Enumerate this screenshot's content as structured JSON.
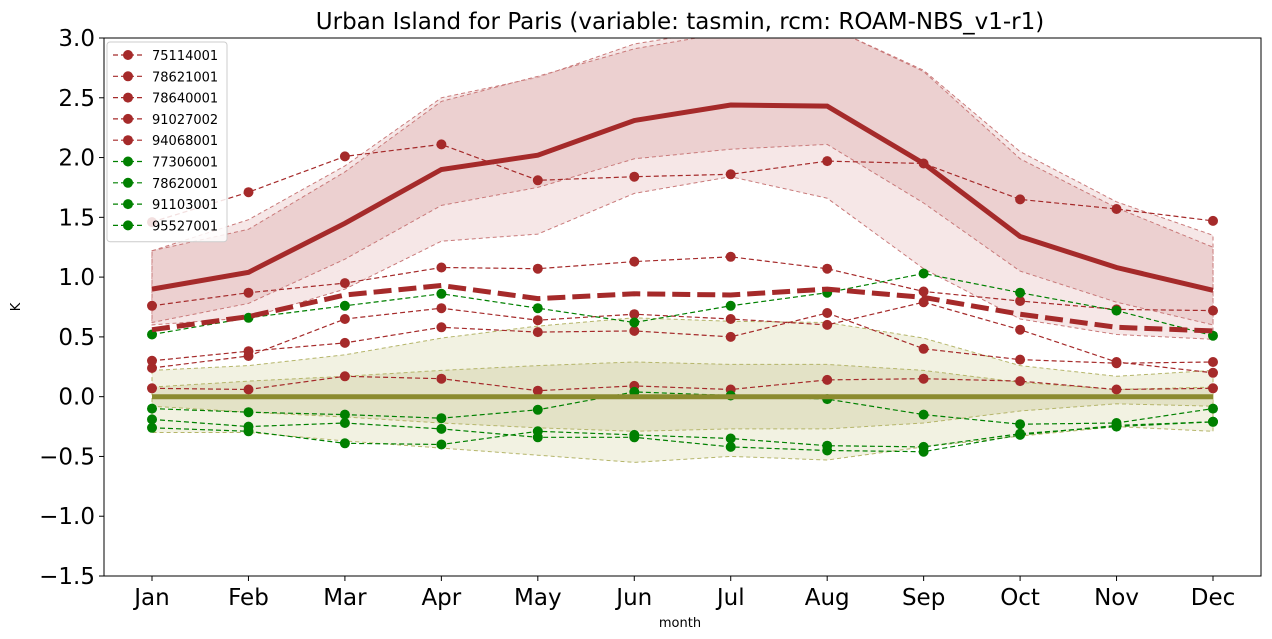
{
  "chart_data": {
    "type": "line",
    "title": "Urban Island for Paris (variable: tasmin, rcm: ROAM-NBS_v1-r1)",
    "xlabel": "month",
    "ylabel": "K",
    "categories": [
      "Jan",
      "Feb",
      "Mar",
      "Apr",
      "May",
      "Jun",
      "Jul",
      "Aug",
      "Sep",
      "Oct",
      "Nov",
      "Dec"
    ],
    "ylim": [
      -1.5,
      3.0
    ],
    "yticks": [
      -1.5,
      -1.0,
      -0.5,
      0.0,
      0.5,
      1.0,
      1.5,
      2.0,
      2.5,
      3.0
    ],
    "ytick_labels": [
      "−1.5",
      "−1.0",
      "−0.5",
      "0.0",
      "0.5",
      "1.0",
      "1.5",
      "2.0",
      "2.5",
      "3.0"
    ],
    "grid": false,
    "legend_position": "top-left",
    "colors": {
      "urban": "#a52a2a",
      "rural": "#008000",
      "reference": "#8b8b2e"
    },
    "series": [
      {
        "name": "75114001",
        "group": "urban",
        "values": [
          0.24,
          0.34,
          0.65,
          0.74,
          0.64,
          0.69,
          0.65,
          0.6,
          0.79,
          0.56,
          0.29,
          0.2
        ]
      },
      {
        "name": "78621001",
        "group": "urban",
        "values": [
          0.3,
          0.38,
          0.45,
          0.58,
          0.54,
          0.55,
          0.5,
          0.7,
          0.4,
          0.31,
          0.28,
          0.29
        ]
      },
      {
        "name": "78640001",
        "group": "urban",
        "values": [
          0.07,
          0.06,
          0.17,
          0.15,
          0.05,
          0.09,
          0.06,
          0.14,
          0.15,
          0.13,
          0.06,
          0.07
        ]
      },
      {
        "name": "91027002",
        "group": "urban",
        "values": [
          0.76,
          0.87,
          0.95,
          1.08,
          1.07,
          1.13,
          1.17,
          1.07,
          0.88,
          0.8,
          0.73,
          0.72
        ]
      },
      {
        "name": "94068001",
        "group": "urban",
        "values": [
          1.46,
          1.71,
          2.01,
          2.11,
          1.81,
          1.84,
          1.86,
          1.97,
          1.95,
          1.65,
          1.57,
          1.47
        ]
      },
      {
        "name": "77306001",
        "group": "rural",
        "values": [
          0.52,
          0.66,
          0.76,
          0.86,
          0.74,
          0.62,
          0.76,
          0.87,
          1.03,
          0.87,
          0.72,
          0.51
        ]
      },
      {
        "name": "78620001",
        "group": "rural",
        "values": [
          -0.1,
          -0.13,
          -0.15,
          -0.18,
          -0.11,
          0.04,
          0.01,
          -0.02,
          -0.15,
          -0.23,
          -0.22,
          -0.1
        ]
      },
      {
        "name": "91103001",
        "group": "rural",
        "values": [
          -0.26,
          -0.29,
          -0.39,
          -0.4,
          -0.29,
          -0.32,
          -0.35,
          -0.41,
          -0.42,
          -0.31,
          -0.25,
          -0.21
        ]
      },
      {
        "name": "95527001",
        "group": "rural",
        "values": [
          -0.19,
          -0.25,
          -0.22,
          -0.27,
          -0.34,
          -0.34,
          -0.42,
          -0.45,
          -0.46,
          -0.32,
          -0.24,
          -0.21
        ]
      }
    ],
    "aggregates": {
      "urban_outer_upper": [
        1.22,
        1.48,
        1.93,
        2.5,
        2.67,
        2.95,
        3.08,
        3.1,
        2.73,
        2.05,
        1.63,
        1.35
      ],
      "urban_outer_lower": [
        0.6,
        0.66,
        0.9,
        1.3,
        1.36,
        1.7,
        1.84,
        1.66,
        1.07,
        0.65,
        0.52,
        0.48
      ],
      "urban_inner_upper": [
        1.22,
        1.4,
        1.88,
        2.47,
        2.68,
        2.91,
        3.05,
        3.1,
        2.72,
        1.99,
        1.58,
        1.25
      ],
      "urban_inner_lower": [
        0.62,
        0.78,
        1.15,
        1.6,
        1.75,
        1.99,
        2.07,
        2.11,
        1.62,
        1.05,
        0.79,
        0.6
      ],
      "urban_mean": [
        0.9,
        1.04,
        1.45,
        1.9,
        2.02,
        2.31,
        2.44,
        2.43,
        1.95,
        1.34,
        1.08,
        0.89
      ],
      "urban_station_mean": [
        0.56,
        0.67,
        0.85,
        0.93,
        0.82,
        0.86,
        0.85,
        0.9,
        0.83,
        0.69,
        0.58,
        0.55
      ],
      "reference_upper": [
        0.22,
        0.26,
        0.35,
        0.49,
        0.59,
        0.66,
        0.63,
        0.62,
        0.49,
        0.26,
        0.17,
        0.22
      ],
      "reference_lower": [
        -0.3,
        -0.3,
        -0.37,
        -0.43,
        -0.49,
        -0.55,
        -0.5,
        -0.53,
        -0.42,
        -0.33,
        -0.25,
        -0.29
      ],
      "reference_inner_upper": [
        0.08,
        0.13,
        0.17,
        0.22,
        0.26,
        0.29,
        0.27,
        0.27,
        0.22,
        0.12,
        0.06,
        0.08
      ],
      "reference_inner_lower": [
        -0.08,
        -0.13,
        -0.17,
        -0.22,
        -0.26,
        -0.29,
        -0.27,
        -0.27,
        -0.22,
        -0.12,
        -0.06,
        -0.08
      ],
      "reference_mean": [
        0,
        0,
        0,
        0,
        0,
        0,
        0,
        0,
        0,
        0,
        0,
        0
      ]
    }
  }
}
